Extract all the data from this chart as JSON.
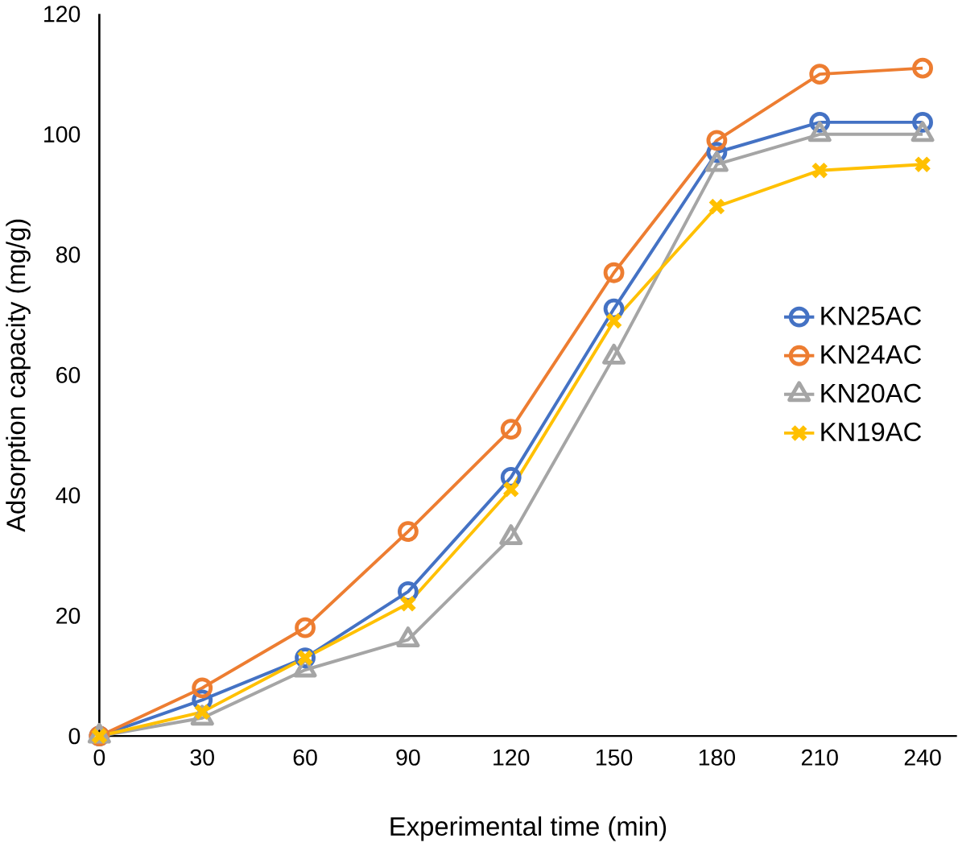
{
  "chart_data": {
    "type": "line",
    "xlabel": "Experimental time (min)",
    "ylabel": "Adsorption capacity (mg/g)",
    "x": [
      0,
      30,
      60,
      90,
      120,
      150,
      180,
      210,
      240
    ],
    "xlim": [
      0,
      250
    ],
    "xticks": [
      0,
      30,
      60,
      90,
      120,
      150,
      180,
      210,
      240
    ],
    "ylim": [
      0,
      120
    ],
    "yticks": [
      0,
      20,
      40,
      60,
      80,
      100,
      120
    ],
    "grid": false,
    "legend": "right",
    "series": [
      {
        "name": "KN25AC",
        "color": "#4472c4",
        "marker": "circle",
        "values": [
          0,
          6,
          13,
          24,
          43,
          71,
          97,
          102,
          102
        ]
      },
      {
        "name": "KN24AC",
        "color": "#ed7d31",
        "marker": "circle",
        "values": [
          0,
          8,
          18,
          34,
          51,
          77,
          99,
          110,
          111
        ]
      },
      {
        "name": "KN20AC",
        "color": "#a5a5a5",
        "marker": "triangle",
        "values": [
          0,
          3,
          11,
          16,
          33,
          63,
          95,
          100,
          100
        ]
      },
      {
        "name": "KN19AC",
        "color": "#ffc000",
        "marker": "cross",
        "values": [
          0,
          4,
          13,
          22,
          41,
          69,
          88,
          94,
          95
        ]
      }
    ]
  }
}
